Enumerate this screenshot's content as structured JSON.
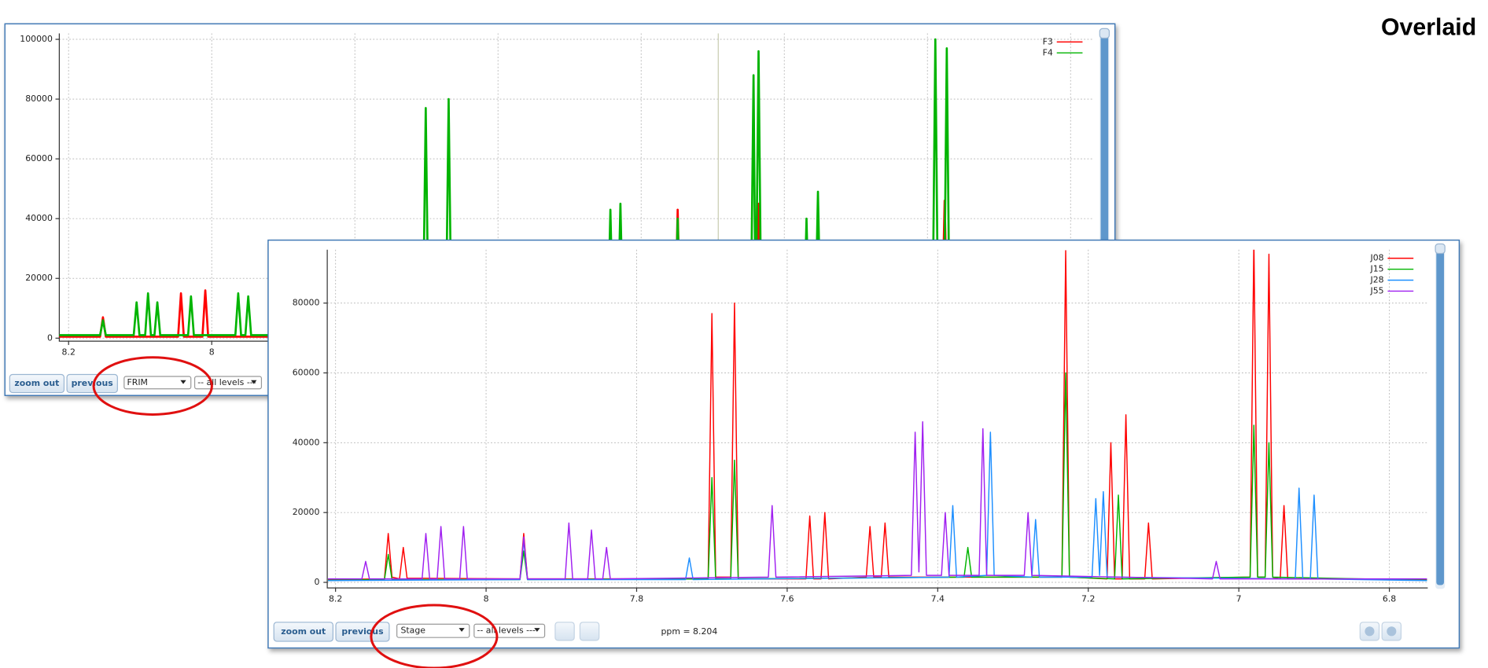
{
  "title": "Overlaid",
  "chart_data": [
    {
      "type": "line",
      "xlim": [
        8.213,
        6.77
      ],
      "ylim": [
        -1000,
        102000
      ],
      "xticks": [
        8.2,
        8,
        7.8,
        7.6,
        7.4,
        7.2,
        7,
        6.8
      ],
      "yticks": [
        0,
        20000,
        40000,
        60000,
        80000,
        100000
      ],
      "grid": true,
      "legend": "upper right",
      "series": [
        {
          "name": "F3",
          "color": "#ff0000",
          "x": [
            8.215,
            8.156,
            8.152,
            8.148,
            8.047,
            8.043,
            8.039,
            8.013,
            8.009,
            8.005,
            7.353,
            7.349,
            7.345,
            7.24,
            7.236,
            7.232,
            6.98,
            6.976,
            6.972,
            6.77
          ],
          "values": [
            500,
            500,
            7000,
            500,
            500,
            15000,
            500,
            500,
            16000,
            500,
            500,
            43000,
            500,
            500,
            45000,
            500,
            500,
            46000,
            500,
            500
          ]
        },
        {
          "name": "F4",
          "color": "#00b400",
          "x": [
            8.215,
            8.156,
            8.152,
            8.148,
            8.109,
            8.105,
            8.101,
            8.093,
            8.089,
            8.085,
            8.08,
            8.076,
            8.072,
            8.033,
            8.029,
            8.025,
            7.967,
            7.963,
            7.959,
            7.953,
            7.949,
            7.945,
            7.705,
            7.701,
            7.697,
            7.673,
            7.669,
            7.665,
            7.447,
            7.443,
            7.439,
            7.433,
            7.429,
            7.425,
            7.353,
            7.349,
            7.345,
            7.247,
            7.243,
            7.24,
            7.236,
            7.232,
            7.173,
            7.169,
            7.165,
            7.157,
            7.153,
            7.149,
            6.993,
            6.989,
            6.985,
            6.977,
            6.973,
            6.969,
            6.77
          ],
          "values": [
            1000,
            1000,
            6000,
            1000,
            1000,
            12000,
            1000,
            1000,
            15000,
            1000,
            1000,
            12000,
            1000,
            1000,
            14000,
            1000,
            1000,
            15000,
            1000,
            1000,
            14000,
            1000,
            1000,
            77000,
            1000,
            1000,
            80000,
            1000,
            1000,
            43000,
            1000,
            1000,
            45000,
            1000,
            1000,
            40000,
            1000,
            1000,
            88000,
            2000,
            96000,
            1000,
            1000,
            40000,
            1000,
            1000,
            49000,
            1000,
            1000,
            100000,
            1000,
            1000,
            97000,
            1000,
            1000
          ]
        }
      ]
    },
    {
      "type": "line",
      "xlim": [
        8.211,
        6.749
      ],
      "ylim": [
        -1600,
        95300
      ],
      "xticks": [
        8.2,
        8,
        7.8,
        7.6,
        7.4,
        7.2,
        7,
        6.8
      ],
      "yticks": [
        0,
        20000,
        40000,
        60000,
        80000
      ],
      "grid": true,
      "legend": "upper right",
      "series": [
        {
          "name": "J08",
          "color": "#ff0000",
          "x": [
            8.21,
            8.135,
            8.13,
            8.125,
            8.115,
            8.11,
            8.105,
            7.955,
            7.95,
            7.945,
            7.705,
            7.7,
            7.695,
            7.675,
            7.67,
            7.665,
            7.575,
            7.57,
            7.565,
            7.555,
            7.55,
            7.545,
            7.495,
            7.49,
            7.485,
            7.475,
            7.47,
            7.465,
            7.235,
            7.23,
            7.225,
            7.175,
            7.17,
            7.165,
            7.155,
            7.15,
            7.145,
            7.125,
            7.12,
            7.115,
            6.985,
            6.98,
            6.975,
            6.965,
            6.96,
            6.955,
            6.945,
            6.94,
            6.935,
            6.75
          ],
          "values": [
            800,
            1000,
            14000,
            1500,
            1000,
            10000,
            1200,
            1000,
            14000,
            1000,
            1000,
            77000,
            1500,
            1500,
            80000,
            1000,
            1000,
            19000,
            1000,
            1000,
            20000,
            1000,
            1500,
            16000,
            1500,
            1500,
            17000,
            1500,
            1500,
            95000,
            1500,
            1000,
            40000,
            1000,
            1000,
            48000,
            1000,
            1000,
            17000,
            1000,
            1500,
            98000,
            1500,
            1500,
            94000,
            1500,
            1000,
            22000,
            1000,
            800
          ]
        },
        {
          "name": "J15",
          "color": "#00b400",
          "x": [
            8.21,
            8.135,
            8.13,
            8.125,
            7.955,
            7.95,
            7.945,
            7.705,
            7.7,
            7.695,
            7.675,
            7.67,
            7.665,
            7.365,
            7.36,
            7.355,
            7.235,
            7.23,
            7.225,
            7.165,
            7.16,
            7.155,
            6.985,
            6.98,
            6.975,
            6.965,
            6.96,
            6.955,
            6.75
          ],
          "values": [
            600,
            800,
            8000,
            800,
            800,
            9000,
            800,
            1000,
            30000,
            1000,
            1000,
            35000,
            1000,
            1500,
            10000,
            1500,
            1500,
            60000,
            1500,
            1000,
            25000,
            1000,
            1500,
            45000,
            1500,
            1500,
            40000,
            1500,
            600
          ]
        },
        {
          "name": "J28",
          "color": "#1e8fff",
          "x": [
            8.21,
            7.955,
            7.95,
            7.945,
            7.735,
            7.73,
            7.725,
            7.385,
            7.38,
            7.375,
            7.335,
            7.33,
            7.325,
            7.275,
            7.27,
            7.265,
            7.195,
            7.19,
            7.185,
            7.18,
            7.175,
            6.925,
            6.92,
            6.915,
            6.905,
            6.9,
            6.895,
            6.75
          ],
          "values": [
            500,
            800,
            12000,
            800,
            800,
            7000,
            800,
            1500,
            22000,
            1500,
            2000,
            43000,
            2000,
            1500,
            18000,
            1500,
            1500,
            24000,
            2000,
            26000,
            1500,
            1000,
            27000,
            1000,
            1000,
            25000,
            1000,
            500
          ]
        },
        {
          "name": "J55",
          "color": "#a020f0",
          "x": [
            8.21,
            8.165,
            8.16,
            8.155,
            8.085,
            8.08,
            8.075,
            8.065,
            8.06,
            8.055,
            8.035,
            8.03,
            8.025,
            7.955,
            7.95,
            7.945,
            7.895,
            7.89,
            7.885,
            7.865,
            7.86,
            7.855,
            7.845,
            7.84,
            7.835,
            7.625,
            7.62,
            7.615,
            7.435,
            7.43,
            7.425,
            7.42,
            7.415,
            7.395,
            7.39,
            7.385,
            7.345,
            7.34,
            7.335,
            7.285,
            7.28,
            7.275,
            7.035,
            7.03,
            7.025,
            6.75
          ],
          "values": [
            1000,
            1000,
            6000,
            1000,
            1000,
            14000,
            1000,
            1000,
            16000,
            1000,
            1000,
            16000,
            1000,
            1000,
            13000,
            1000,
            1000,
            17000,
            1000,
            1000,
            15000,
            1000,
            1000,
            10000,
            1000,
            1500,
            22000,
            1500,
            2000,
            43000,
            3000,
            46000,
            2000,
            2000,
            20000,
            2000,
            2000,
            44000,
            2000,
            2000,
            20000,
            2000,
            1000,
            6000,
            1000,
            1000
          ]
        }
      ]
    }
  ],
  "controls": [
    {
      "zoom_out": "zoom out",
      "previous": "previous",
      "view": "FRIM",
      "levels": "-- all levels ---"
    },
    {
      "zoom_out": "zoom out",
      "previous": "previous",
      "view": "Stage",
      "levels": "-- all levels ---",
      "cursor": "ppm = 8.204"
    }
  ]
}
